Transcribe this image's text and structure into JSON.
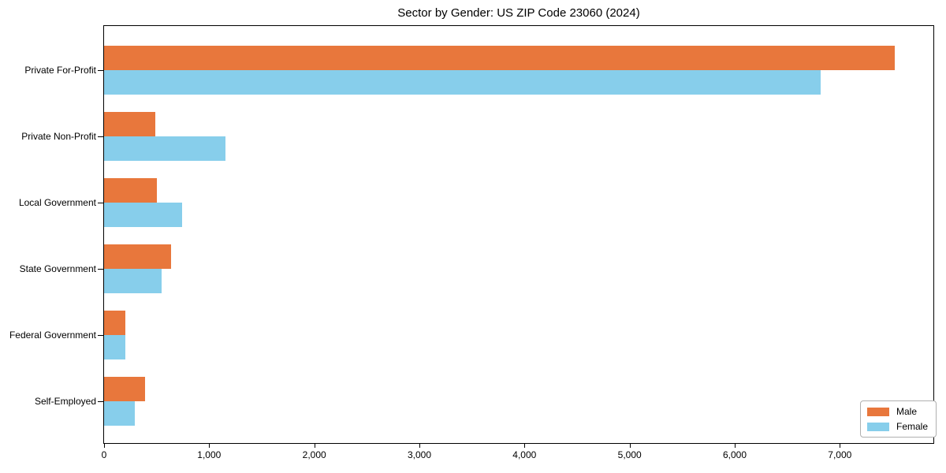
{
  "chart_data": {
    "type": "bar",
    "orientation": "horizontal",
    "title": "Sector by Gender: US ZIP Code 23060 (2024)",
    "categories": [
      "Private For-Profit",
      "Private Non-Profit",
      "Local Government",
      "State Government",
      "Federal Government",
      "Self-Employed"
    ],
    "series": [
      {
        "name": "Male",
        "color": "#e8773c",
        "values": [
          7520,
          490,
          505,
          635,
          205,
          390
        ]
      },
      {
        "name": "Female",
        "color": "#87ceeb",
        "values": [
          6820,
          1155,
          740,
          550,
          200,
          290
        ]
      }
    ],
    "xlim": [
      0,
      7890
    ],
    "xticks": [
      0,
      1000,
      2000,
      3000,
      4000,
      5000,
      6000,
      7000
    ],
    "xtick_labels": [
      "0",
      "1,000",
      "2,000",
      "3,000",
      "4,000",
      "5,000",
      "6,000",
      "7,000"
    ],
    "xlabel": "",
    "ylabel": "",
    "grid": false,
    "legend_position": "lower right",
    "colors": {
      "axis": "#000000",
      "legend_border": "#b0b0b0",
      "background": "#ffffff"
    }
  }
}
